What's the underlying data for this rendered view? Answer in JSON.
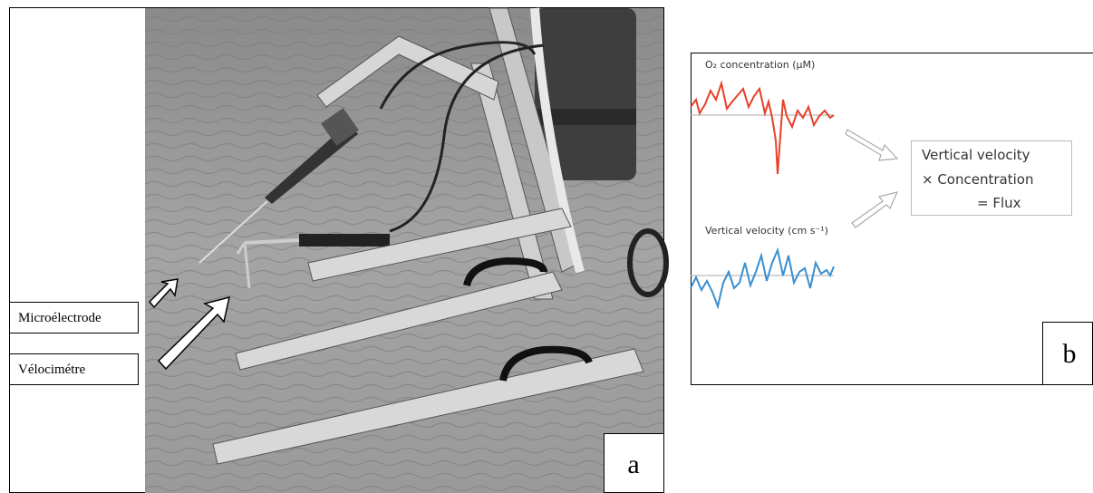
{
  "panel_a": {
    "labels": [
      "Microélectrode",
      "Vélocimétre"
    ],
    "panel_label": "a"
  },
  "panel_b": {
    "o2_label": "O₂ concentration (µM)",
    "velocity_label": "Vertical velocity (cm s⁻¹)",
    "equation": [
      "Vertical velocity",
      "× Concentration",
      "= Flux"
    ],
    "panel_label": "b"
  }
}
